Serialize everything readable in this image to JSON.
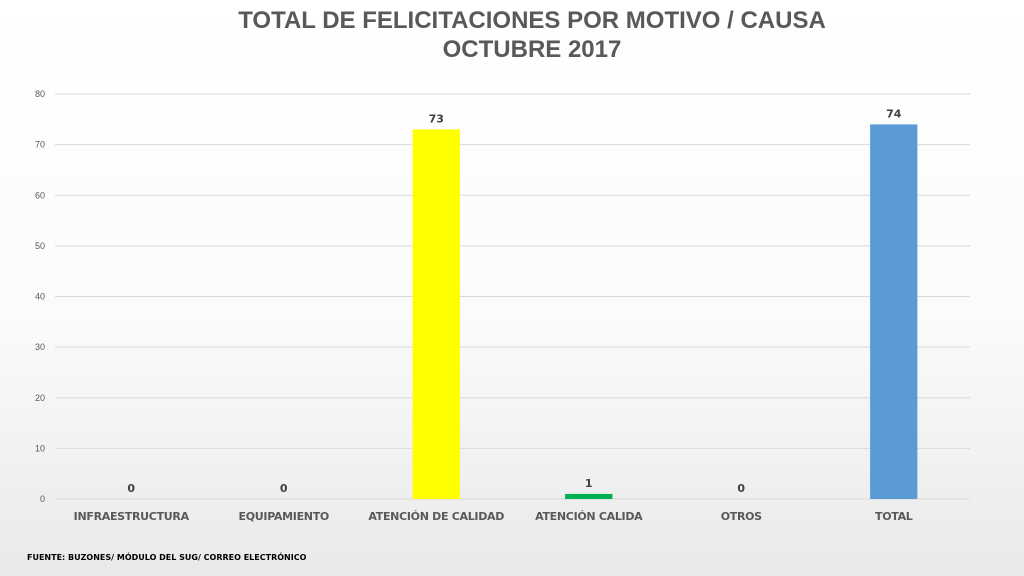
{
  "chart_data": {
    "type": "bar",
    "title_line1": "TOTAL DE FELICITACIONES POR MOTIVO / CAUSA",
    "title_line2": "OCTUBRE 2017",
    "categories": [
      "INFRAESTRUCTURA",
      "EQUIPAMIENTO",
      "ATENCIÓN DE CALIDAD",
      "ATENCIÓN CALIDA",
      "OTROS",
      "TOTAL"
    ],
    "values": [
      0,
      0,
      73,
      1,
      0,
      74
    ],
    "colors": [
      "#5b9bd5",
      "#5b9bd5",
      "#ffff00",
      "#00b050",
      "#5b9bd5",
      "#5b9bd5"
    ],
    "ylim": [
      0,
      80
    ],
    "yticks": [
      0,
      10,
      20,
      30,
      40,
      50,
      60,
      70,
      80
    ],
    "grid": true,
    "legend": "none"
  },
  "footer": {
    "source": "FUENTE: BUZONES/ MÓDULO DEL SUG/ CORREO ELECTRÓNICO"
  }
}
